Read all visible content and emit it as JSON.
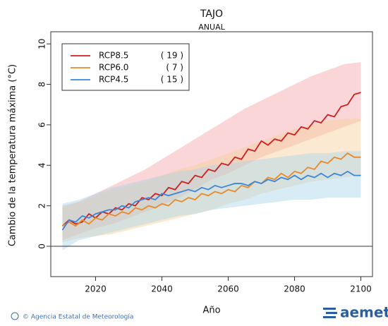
{
  "chart_data": {
    "type": "line",
    "title": "TAJO",
    "subtitle": "ANUAL",
    "ylabel": "Cambio  de la temperatura máxima (°C)",
    "xlabel": "Año",
    "x": [
      2010,
      2012,
      2014,
      2016,
      2018,
      2020,
      2022,
      2024,
      2026,
      2028,
      2030,
      2032,
      2034,
      2036,
      2038,
      2040,
      2042,
      2044,
      2046,
      2048,
      2050,
      2052,
      2054,
      2056,
      2058,
      2060,
      2062,
      2064,
      2066,
      2068,
      2070,
      2072,
      2074,
      2076,
      2078,
      2080,
      2082,
      2084,
      2086,
      2088,
      2090,
      2092,
      2094,
      2096,
      2098,
      2100
    ],
    "band_x": [
      2010,
      2015,
      2020,
      2025,
      2030,
      2035,
      2040,
      2045,
      2050,
      2055,
      2060,
      2065,
      2070,
      2075,
      2080,
      2085,
      2090,
      2095,
      2100
    ],
    "series": [
      {
        "name": "RCP8.5",
        "count_label": "( 19 )",
        "color": "#cc2020",
        "band_color": "#f4a3a8",
        "values": [
          1.0,
          1.3,
          1.1,
          1.2,
          1.6,
          1.4,
          1.7,
          1.6,
          1.9,
          1.8,
          2.1,
          2.0,
          2.4,
          2.3,
          2.6,
          2.5,
          2.9,
          2.8,
          3.2,
          3.1,
          3.5,
          3.4,
          3.8,
          3.7,
          4.1,
          4.0,
          4.4,
          4.3,
          4.8,
          4.7,
          5.2,
          5.0,
          5.3,
          5.2,
          5.6,
          5.5,
          5.9,
          5.8,
          6.2,
          6.1,
          6.5,
          6.4,
          6.9,
          7.0,
          7.5,
          7.6
        ],
        "band_low": [
          0.3,
          0.6,
          0.9,
          1.1,
          1.4,
          1.7,
          2.0,
          2.4,
          2.8,
          3.3,
          3.6,
          4.0,
          4.4,
          4.7,
          5.0,
          5.3,
          5.6,
          5.9,
          6.2
        ],
        "band_high": [
          2.0,
          2.2,
          2.6,
          3.0,
          3.4,
          3.8,
          4.3,
          4.8,
          5.3,
          5.8,
          6.3,
          6.8,
          7.2,
          7.6,
          8.0,
          8.4,
          8.7,
          9.0,
          9.1
        ]
      },
      {
        "name": "RCP6.0",
        "count_label": "( 7 )",
        "color": "#e8892a",
        "band_color": "#f9cf9a",
        "values": [
          1.0,
          1.2,
          1.0,
          1.3,
          1.1,
          1.4,
          1.3,
          1.6,
          1.5,
          1.7,
          1.6,
          1.9,
          1.8,
          2.0,
          1.9,
          2.1,
          2.0,
          2.3,
          2.2,
          2.4,
          2.3,
          2.6,
          2.5,
          2.7,
          2.6,
          2.8,
          2.7,
          3.0,
          2.9,
          3.2,
          3.1,
          3.4,
          3.3,
          3.6,
          3.4,
          3.7,
          3.6,
          3.9,
          3.8,
          4.2,
          4.1,
          4.4,
          4.3,
          4.6,
          4.4,
          4.4
        ],
        "band_low": [
          0.2,
          0.4,
          0.5,
          0.6,
          0.8,
          1.0,
          1.2,
          1.4,
          1.6,
          1.8,
          2.1,
          2.3,
          2.6,
          2.8,
          3.0,
          3.2,
          3.3,
          3.4,
          3.5
        ],
        "band_high": [
          1.9,
          2.2,
          2.5,
          2.8,
          3.0,
          3.2,
          3.5,
          3.8,
          4.0,
          4.3,
          4.6,
          4.9,
          5.2,
          5.5,
          5.8,
          6.0,
          6.2,
          6.3,
          6.3
        ]
      },
      {
        "name": "RCP4.5",
        "count_label": "( 15 )",
        "color": "#3a86d8",
        "band_color": "#a8d4e8",
        "values": [
          0.8,
          1.3,
          1.2,
          1.5,
          1.4,
          1.6,
          1.7,
          1.8,
          1.8,
          2.0,
          1.9,
          2.2,
          2.3,
          2.4,
          2.3,
          2.6,
          2.5,
          2.6,
          2.7,
          2.8,
          2.7,
          2.9,
          2.8,
          3.0,
          2.9,
          3.0,
          3.1,
          3.1,
          3.0,
          3.2,
          3.1,
          3.3,
          3.2,
          3.4,
          3.3,
          3.5,
          3.3,
          3.5,
          3.4,
          3.6,
          3.4,
          3.6,
          3.5,
          3.7,
          3.5,
          3.5
        ],
        "band_low": [
          -0.2,
          0.3,
          0.5,
          0.7,
          0.9,
          1.1,
          1.3,
          1.5,
          1.6,
          1.8,
          1.9,
          2.0,
          2.1,
          2.2,
          2.3,
          2.3,
          2.4,
          2.4,
          2.4
        ],
        "band_high": [
          2.1,
          2.3,
          2.6,
          2.9,
          3.1,
          3.3,
          3.5,
          3.7,
          3.8,
          4.0,
          4.1,
          4.2,
          4.3,
          4.4,
          4.5,
          4.6,
          4.6,
          4.7,
          4.7
        ]
      }
    ],
    "xlim": [
      2006.5,
      2103.5
    ],
    "ylim": [
      -1.5,
      10.6
    ],
    "xticks": [
      2020,
      2040,
      2060,
      2080,
      2100
    ],
    "yticks": [
      0,
      2,
      4,
      6,
      8,
      10
    ],
    "legend": "upper left"
  },
  "footer": {
    "credit": "© Agencia Estatal de Meteorología",
    "logo": "aemet"
  }
}
